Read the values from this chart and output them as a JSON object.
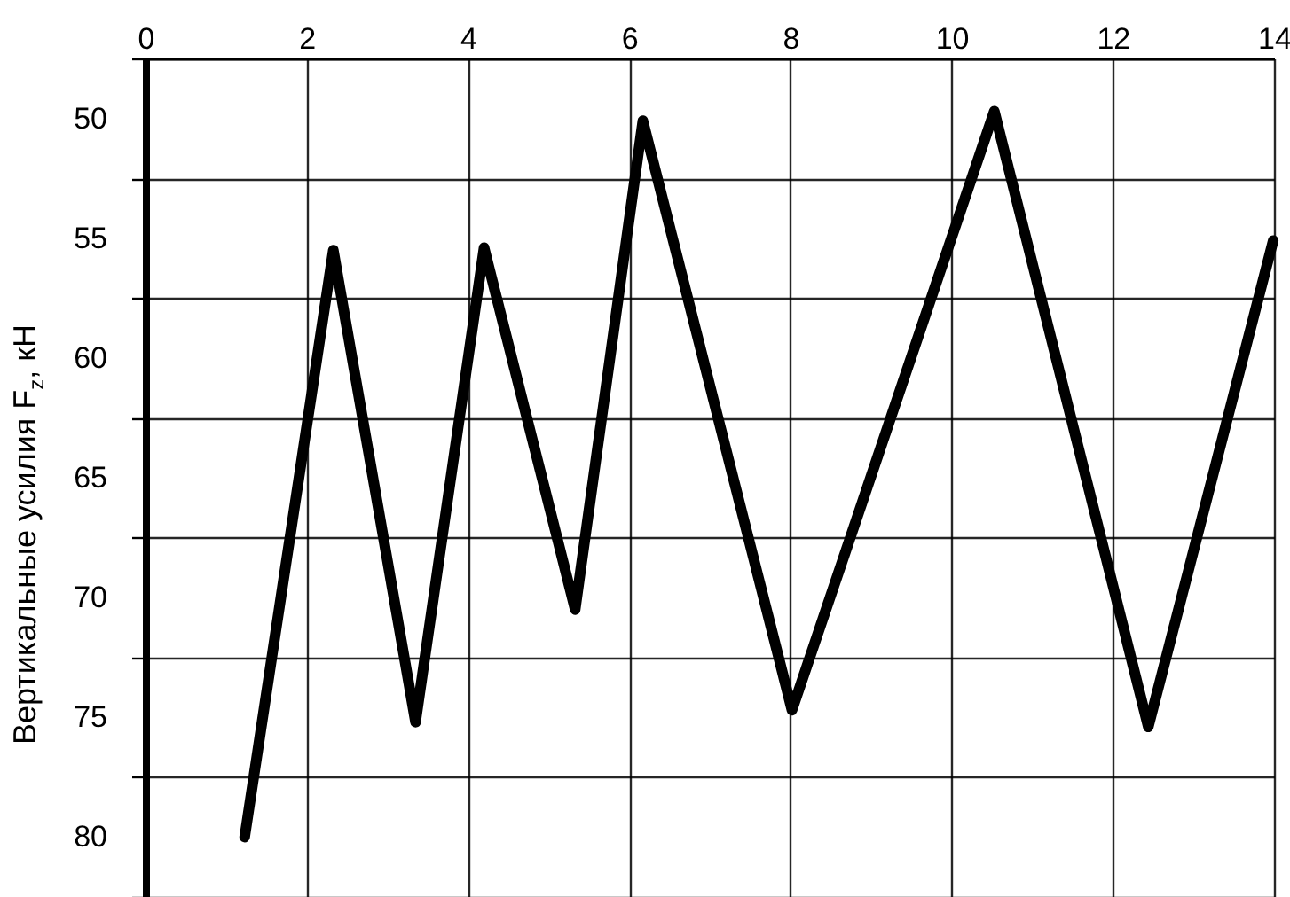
{
  "chart_data": {
    "type": "line",
    "ylabel": "Вертикальные усилия F$_{z}$, кН",
    "x": [
      1.23,
      2.33,
      3.35,
      4.2,
      5.33,
      6.17,
      8.02,
      10.53,
      12.44,
      13.99
    ],
    "series": [
      {
        "color": "#000000",
        "values": [
          80,
          55.5,
          75.2,
          55.4,
          70.5,
          50.1,
          74.7,
          49.7,
          75.4,
          55.1
        ]
      }
    ],
    "xlim": [
      0,
      14
    ],
    "xticks": [
      0,
      2,
      4,
      6,
      8,
      10,
      12,
      14
    ],
    "ylim": [
      82.5,
      47.5
    ],
    "yticks": [
      {
        "value": 47.5,
        "label": null
      },
      50,
      {
        "value": 52.5,
        "label": null
      },
      55,
      {
        "value": 57.5,
        "label": null
      },
      60,
      {
        "value": 62.5,
        "label": null
      },
      65,
      {
        "value": 67.5,
        "label": null
      },
      70,
      {
        "value": 72.5,
        "label": null
      },
      75,
      {
        "value": 77.5,
        "label": null
      },
      80,
      {
        "value": 82.5,
        "label": null
      }
    ],
    "grid": true,
    "marker": "none",
    "line_style": "solid"
  }
}
